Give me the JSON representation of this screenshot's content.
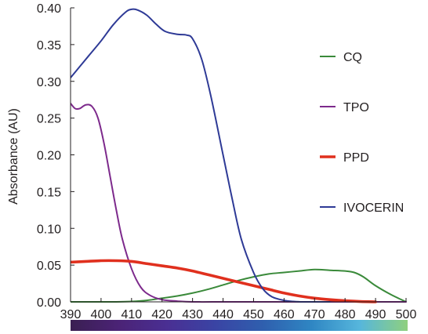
{
  "chart_data": {
    "type": "line",
    "xlabel": "",
    "ylabel": "Absorbance (AU)",
    "xlim": [
      390,
      500
    ],
    "ylim": [
      0,
      0.4
    ],
    "x_ticks": [
      390,
      400,
      410,
      420,
      430,
      440,
      450,
      460,
      470,
      480,
      490,
      500
    ],
    "y_ticks": [
      0,
      0.05,
      0.1,
      0.15,
      0.2,
      0.25,
      0.3,
      0.35,
      0.4
    ],
    "y_tick_labels": [
      "0.00",
      "0.05",
      "0.10",
      "0.15",
      "0.20",
      "0.25",
      "0.30",
      "0.35",
      "0.40"
    ],
    "grid": false,
    "legend_position": "right",
    "series": [
      {
        "name": "CQ",
        "color": "#3a8a3a",
        "x": [
          390,
          400,
          405,
          410,
          415,
          420,
          425,
          430,
          435,
          440,
          445,
          450,
          455,
          460,
          465,
          470,
          475,
          480,
          483,
          486,
          490,
          495,
          500
        ],
        "y": [
          0,
          0,
          0,
          0.0005,
          0.002,
          0.005,
          0.008,
          0.012,
          0.017,
          0.023,
          0.029,
          0.034,
          0.038,
          0.04,
          0.042,
          0.044,
          0.043,
          0.042,
          0.04,
          0.034,
          0.022,
          0.01,
          0
        ]
      },
      {
        "name": "TPO",
        "color": "#7d2a8c",
        "x": [
          390,
          391.5,
          393,
          395,
          397,
          399,
          401,
          403,
          405,
          407,
          410,
          413,
          416,
          420,
          425,
          430,
          440,
          450,
          460,
          470,
          480,
          490,
          500
        ],
        "y": [
          0.27,
          0.263,
          0.263,
          0.268,
          0.266,
          0.25,
          0.215,
          0.17,
          0.125,
          0.085,
          0.045,
          0.02,
          0.009,
          0.003,
          0.001,
          0,
          0,
          0,
          0,
          0,
          0,
          0,
          0
        ]
      },
      {
        "name": "PPD",
        "color": "#e0301e",
        "x": [
          390,
          395,
          400,
          405,
          410,
          415,
          420,
          425,
          430,
          435,
          440,
          445,
          450,
          455,
          460,
          465,
          470,
          475,
          480,
          485,
          490
        ],
        "y": [
          0.054,
          0.055,
          0.056,
          0.056,
          0.055,
          0.052,
          0.049,
          0.046,
          0.042,
          0.037,
          0.032,
          0.027,
          0.022,
          0.017,
          0.012,
          0.008,
          0.005,
          0.003,
          0.0015,
          0.0005,
          0
        ]
      },
      {
        "name": "IVOCERIN",
        "color": "#2e3a96",
        "x": [
          390,
          393,
          396,
          400,
          404,
          408,
          410,
          412,
          415,
          418,
          421,
          425,
          428,
          430,
          433,
          436,
          440,
          443,
          446,
          450,
          453,
          456,
          460,
          463,
          466,
          470,
          475
        ],
        "y": [
          0.305,
          0.32,
          0.335,
          0.355,
          0.377,
          0.394,
          0.398,
          0.397,
          0.39,
          0.378,
          0.368,
          0.364,
          0.363,
          0.358,
          0.33,
          0.28,
          0.2,
          0.14,
          0.085,
          0.04,
          0.018,
          0.007,
          0.002,
          0.0005,
          0,
          0,
          0
        ]
      }
    ],
    "colorbar": {
      "stops": [
        "#3a1f52",
        "#4b2376",
        "#4a2f93",
        "#3a44a4",
        "#2f5fae",
        "#2f86c3",
        "#56b6dc",
        "#8fd07e"
      ]
    }
  }
}
